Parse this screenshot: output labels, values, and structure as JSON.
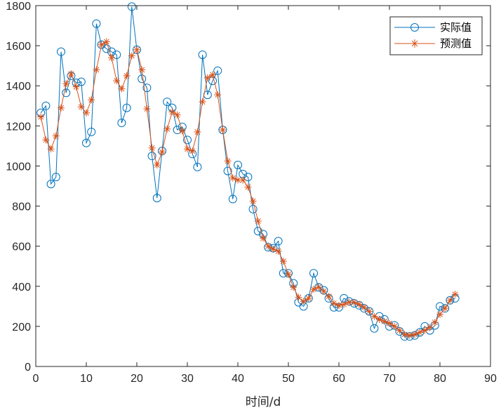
{
  "chart_data": {
    "type": "line",
    "xlabel": "时间/d",
    "ylabel": "",
    "title": "",
    "xlim": [
      0,
      90
    ],
    "ylim": [
      0,
      1800
    ],
    "xticks": [
      0,
      10,
      20,
      30,
      40,
      50,
      60,
      70,
      80,
      90
    ],
    "yticks": [
      0,
      200,
      400,
      600,
      800,
      1000,
      1200,
      1400,
      1600,
      1800
    ],
    "grid": false,
    "legend_position": "top-right",
    "x": [
      1,
      2,
      3,
      4,
      5,
      6,
      7,
      8,
      9,
      10,
      11,
      12,
      13,
      14,
      15,
      16,
      17,
      18,
      19,
      20,
      21,
      22,
      23,
      24,
      25,
      26,
      27,
      28,
      29,
      30,
      31,
      32,
      33,
      34,
      35,
      36,
      37,
      38,
      39,
      40,
      41,
      42,
      43,
      44,
      45,
      46,
      47,
      48,
      49,
      50,
      51,
      52,
      53,
      54,
      55,
      56,
      57,
      58,
      59,
      60,
      61,
      62,
      63,
      64,
      65,
      66,
      67,
      68,
      69,
      70,
      71,
      72,
      73,
      74,
      75,
      76,
      77,
      78,
      79,
      80,
      81,
      82,
      83
    ],
    "series": [
      {
        "name": "实际值",
        "color": "#0072BD",
        "marker": "circle",
        "values": [
          1265,
          1300,
          910,
          945,
          1570,
          1365,
          1450,
          1415,
          1420,
          1115,
          1170,
          1710,
          1605,
          1585,
          1570,
          1555,
          1215,
          1290,
          1795,
          1580,
          1435,
          1390,
          1050,
          840,
          1075,
          1320,
          1290,
          1180,
          1195,
          1130,
          1060,
          995,
          1555,
          1355,
          1425,
          1475,
          1180,
          975,
          835,
          1005,
          960,
          945,
          785,
          675,
          660,
          595,
          590,
          625,
          465,
          465,
          415,
          320,
          300,
          340,
          465,
          395,
          380,
          340,
          295,
          295,
          340,
          325,
          315,
          305,
          290,
          275,
          190,
          250,
          235,
          200,
          205,
          175,
          150,
          150,
          155,
          170,
          200,
          180,
          205,
          300,
          290,
          330,
          340
        ]
      },
      {
        "name": "预测值",
        "color": "#D95319",
        "marker": "asterisk",
        "values": [
          1245,
          1130,
          1085,
          1150,
          1290,
          1410,
          1460,
          1395,
          1295,
          1265,
          1330,
          1480,
          1605,
          1620,
          1540,
          1425,
          1385,
          1450,
          1550,
          1580,
          1480,
          1285,
          1090,
          1005,
          1070,
          1185,
          1270,
          1255,
          1175,
          1085,
          1075,
          1170,
          1320,
          1440,
          1455,
          1355,
          1180,
          1025,
          940,
          930,
          930,
          895,
          825,
          725,
          640,
          600,
          585,
          575,
          525,
          460,
          395,
          345,
          325,
          340,
          385,
          395,
          375,
          350,
          315,
          305,
          310,
          320,
          320,
          310,
          295,
          275,
          250,
          235,
          225,
          215,
          200,
          180,
          160,
          155,
          160,
          170,
          180,
          195,
          220,
          260,
          290,
          330,
          360
        ]
      }
    ]
  }
}
